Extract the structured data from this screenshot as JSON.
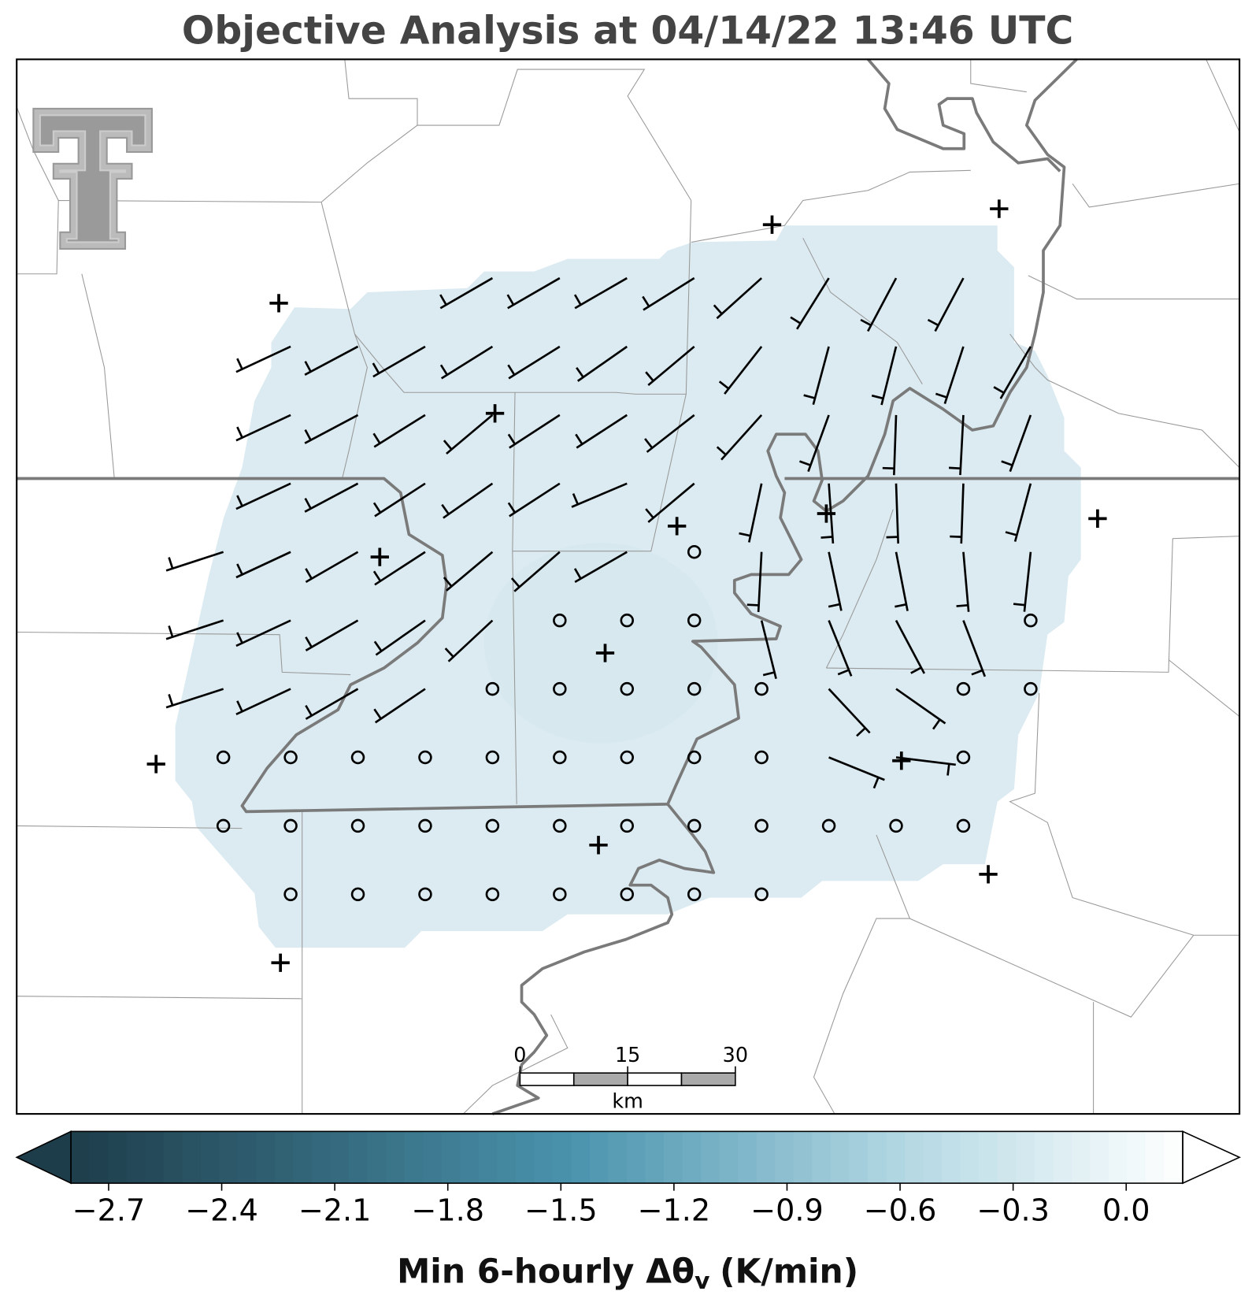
{
  "title": "Objective Analysis at 04/14/22 13:46 UTC",
  "colorbar": {
    "label": "Min 6-hourly Δθ",
    "label_subscript": "v",
    "label_unit": "(K/min)",
    "lim": [
      -2.8,
      0.15
    ],
    "ticks": [
      {
        "value": -2.7,
        "label": "−2.7"
      },
      {
        "value": -2.4,
        "label": "−2.4"
      },
      {
        "value": -2.1,
        "label": "−2.1"
      },
      {
        "value": -1.8,
        "label": "−1.8"
      },
      {
        "value": -1.5,
        "label": "−1.5"
      },
      {
        "value": -1.2,
        "label": "−1.2"
      },
      {
        "value": -0.9,
        "label": "−0.9"
      },
      {
        "value": -0.6,
        "label": "−0.6"
      },
      {
        "value": -0.3,
        "label": "−0.3"
      },
      {
        "value": 0,
        "label": "0.0"
      }
    ]
  },
  "scale_bar": {
    "ticks": [
      0,
      15,
      30
    ],
    "unit": "km"
  }
}
